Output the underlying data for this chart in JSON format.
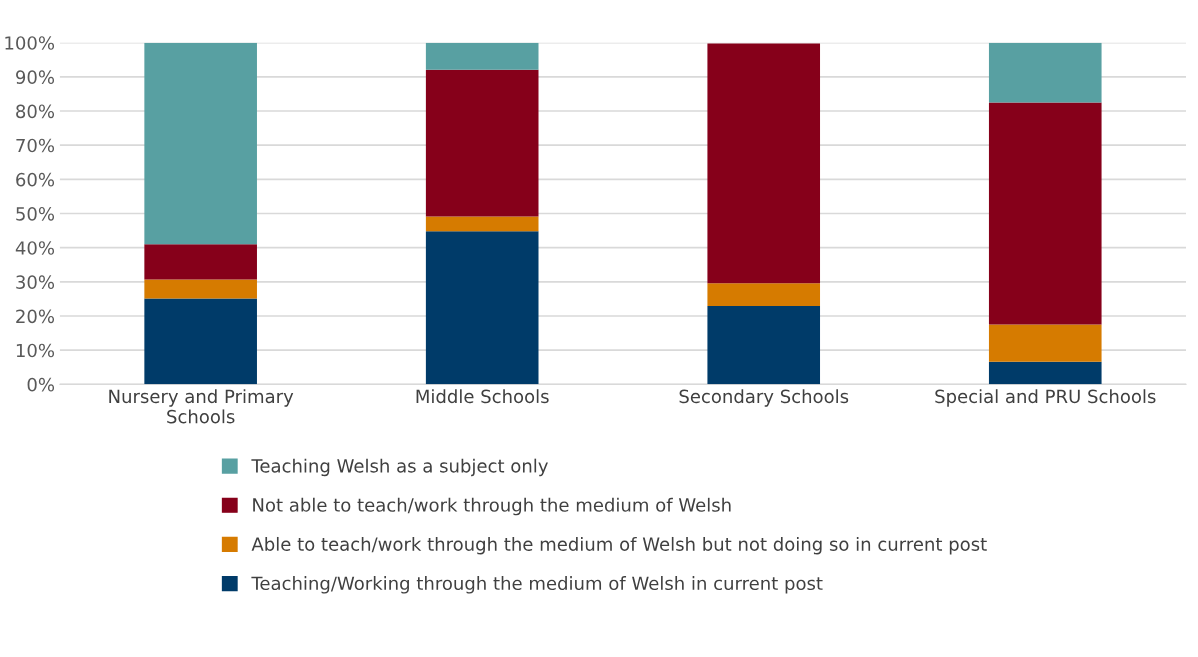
{
  "chart_data": {
    "type": "bar",
    "stacked": true,
    "categories": [
      "Nursery and Primary\nSchools",
      "Middle Schools",
      "Secondary Schools",
      "Special and PRU Schools"
    ],
    "series": [
      {
        "name": "Teaching/Working through the medium of Welsh in current post",
        "color": "#003b69",
        "values": [
          25.1,
          44.8,
          22.9,
          6.6
        ]
      },
      {
        "name": "Able to teach/work through the medium of Welsh but not doing so in current post",
        "color": "#d67b00",
        "values": [
          5.6,
          4.3,
          6.7,
          10.9
        ]
      },
      {
        "name": "Not able to teach/work through the medium of Welsh",
        "color": "#86001a",
        "values": [
          10.3,
          43.0,
          70.2,
          65.0
        ]
      },
      {
        "name": "Teaching Welsh as a subject only",
        "color": "#58a0a2",
        "values": [
          59.0,
          7.9,
          null,
          17.5
        ]
      }
    ],
    "ylim": [
      0,
      100
    ],
    "yticks": [
      {
        "value": 0,
        "label": "0%"
      },
      {
        "value": 10,
        "label": "10%"
      },
      {
        "value": 20,
        "label": "20%"
      },
      {
        "value": 30,
        "label": "30%"
      },
      {
        "value": 40,
        "label": "40%"
      },
      {
        "value": 50,
        "label": "50%"
      },
      {
        "value": 60,
        "label": "60%"
      },
      {
        "value": 70,
        "label": "70%"
      },
      {
        "value": 80,
        "label": "80%"
      },
      {
        "value": 90,
        "label": "90%"
      },
      {
        "value": 100,
        "label": "100%"
      }
    ],
    "grid": "y",
    "legend": "bottom"
  }
}
